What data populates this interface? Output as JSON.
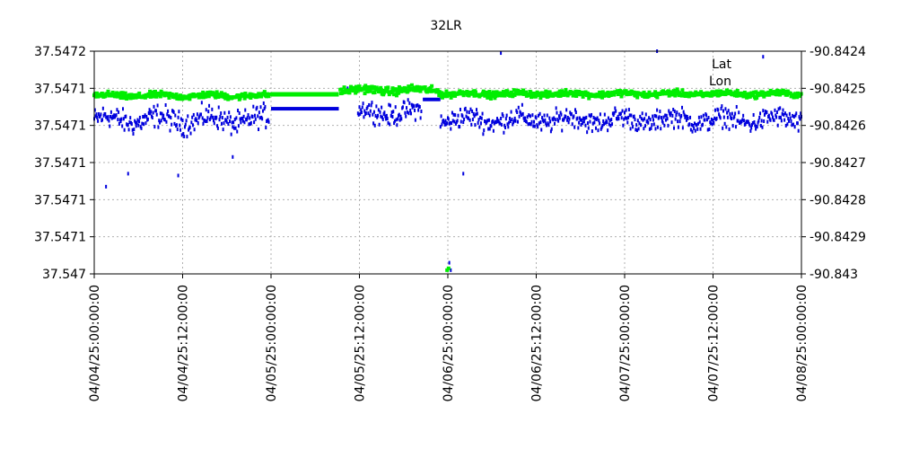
{
  "chart_data": {
    "type": "scatter",
    "title": "32LR",
    "xlabel": "",
    "ylabel": "",
    "y2label": "",
    "grid": true,
    "legend_position": "top-right",
    "x_range": [
      0,
      96
    ],
    "x_unit": "hours since 04/04/25:00:00:00",
    "x_ticks": [
      {
        "x": 0,
        "label": "04/04/25:00:00:00"
      },
      {
        "x": 12,
        "label": "04/04/25:12:00:00"
      },
      {
        "x": 24,
        "label": "04/05/25:00:00:00"
      },
      {
        "x": 36,
        "label": "04/05/25:12:00:00"
      },
      {
        "x": 48,
        "label": "04/06/25:00:00:00"
      },
      {
        "x": 60,
        "label": "04/06/25:12:00:00"
      },
      {
        "x": 72,
        "label": "04/07/25:00:00:00"
      },
      {
        "x": 84,
        "label": "04/07/25:12:00:00"
      },
      {
        "x": 96,
        "label": "04/08/25:00:00:00"
      }
    ],
    "y_left": {
      "label": "",
      "range": [
        0,
        6
      ],
      "tick_labels": [
        "37.547",
        "37.5471",
        "37.5471",
        "37.5471",
        "37.5471",
        "37.5471",
        "37.5472"
      ]
    },
    "y_right": {
      "label": "",
      "range": [
        -90.843,
        -90.8424
      ],
      "tick_labels": [
        "-90.843",
        "-90.8429",
        "-90.8428",
        "-90.8427",
        "-90.8426",
        "-90.8425",
        "-90.8424"
      ]
    },
    "series": [
      {
        "name": "Lat",
        "axis": "left",
        "color": "#0000dd",
        "marker": "dash",
        "note": "Latitude reading; values expressed in left-axis grid units (0 = 37.547, 6 = 37.5472)",
        "segments": [
          {
            "x_start": 0.0,
            "x_end": 23.8,
            "baseline": 4.15,
            "spread": 0.45
          },
          {
            "x_start": 24.0,
            "x_end": 33.2,
            "flat": 4.45
          },
          {
            "x_start": 35.8,
            "x_end": 44.5,
            "baseline": 4.35,
            "spread": 0.4
          },
          {
            "x_start": 44.6,
            "x_end": 47.0,
            "flat": 4.7
          },
          {
            "x_start": 47.0,
            "x_end": 96.0,
            "baseline": 4.15,
            "spread": 0.4
          }
        ],
        "outliers": [
          {
            "x": 1.6,
            "y": 2.35
          },
          {
            "x": 4.6,
            "y": 2.7
          },
          {
            "x": 11.4,
            "y": 2.65
          },
          {
            "x": 18.8,
            "y": 3.15
          },
          {
            "x": 48.2,
            "y": 0.3
          },
          {
            "x": 48.4,
            "y": 0.1
          },
          {
            "x": 50.1,
            "y": 2.7
          },
          {
            "x": 55.2,
            "y": 5.95
          },
          {
            "x": 76.4,
            "y": 6.0
          },
          {
            "x": 90.8,
            "y": 5.85
          },
          {
            "x": 34.4,
            "y": 5.0
          }
        ]
      },
      {
        "name": "Lon",
        "axis": "right",
        "color": "#00ee00",
        "marker": "square",
        "note": "Longitude reading; values expressed in left-axis grid units",
        "segments": [
          {
            "x_start": 0.0,
            "x_end": 23.8,
            "baseline": 4.8,
            "spread": 0.12
          },
          {
            "x_start": 24.0,
            "x_end": 33.2,
            "flat": 4.85
          },
          {
            "x_start": 33.4,
            "x_end": 47.0,
            "baseline": 4.95,
            "spread": 0.15
          },
          {
            "x_start": 47.0,
            "x_end": 96.0,
            "baseline": 4.85,
            "spread": 0.12
          }
        ],
        "outliers": [
          {
            "x": 47.9,
            "y": 0.1
          },
          {
            "x": 48.1,
            "y": 0.15
          }
        ]
      }
    ]
  }
}
